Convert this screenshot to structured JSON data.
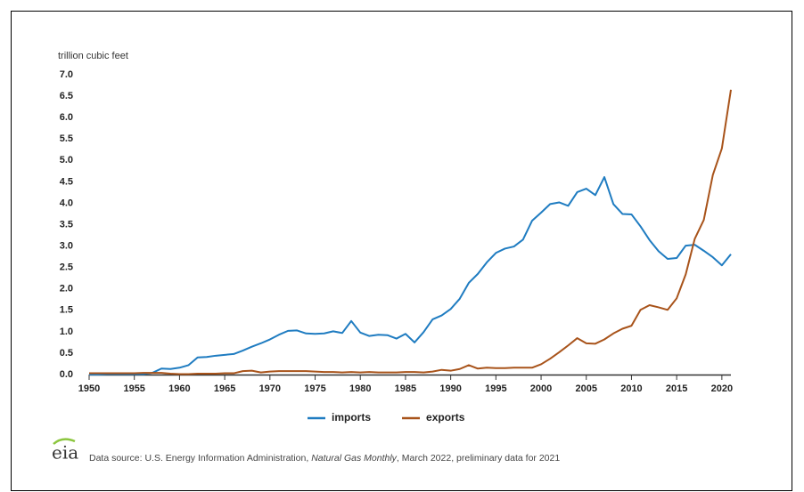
{
  "chart_data": {
    "type": "line",
    "y_axis_label": "trillion cubic feet",
    "x": [
      1950,
      1951,
      1952,
      1953,
      1954,
      1955,
      1956,
      1957,
      1958,
      1959,
      1960,
      1961,
      1962,
      1963,
      1964,
      1965,
      1966,
      1967,
      1968,
      1969,
      1970,
      1971,
      1972,
      1973,
      1974,
      1975,
      1976,
      1977,
      1978,
      1979,
      1980,
      1981,
      1982,
      1983,
      1984,
      1985,
      1986,
      1987,
      1988,
      1989,
      1990,
      1991,
      1992,
      1993,
      1994,
      1995,
      1996,
      1997,
      1998,
      1999,
      2000,
      2001,
      2002,
      2003,
      2004,
      2005,
      2006,
      2007,
      2008,
      2009,
      2010,
      2011,
      2012,
      2013,
      2014,
      2015,
      2016,
      2017,
      2018,
      2019,
      2020,
      2021
    ],
    "series": [
      {
        "name": "imports",
        "color": "#1f7cc1",
        "values": [
          0,
          0,
          0.01,
          0.01,
          0.01,
          0.01,
          0.01,
          0.04,
          0.14,
          0.13,
          0.16,
          0.22,
          0.4,
          0.41,
          0.44,
          0.46,
          0.48,
          0.56,
          0.65,
          0.73,
          0.82,
          0.93,
          1.02,
          1.03,
          0.96,
          0.95,
          0.96,
          1.01,
          0.97,
          1.25,
          0.98,
          0.9,
          0.93,
          0.92,
          0.84,
          0.95,
          0.75,
          0.99,
          1.29,
          1.38,
          1.53,
          1.77,
          2.14,
          2.35,
          2.62,
          2.84,
          2.94,
          2.99,
          3.15,
          3.59,
          3.78,
          3.98,
          4.02,
          3.94,
          4.26,
          4.34,
          4.19,
          4.61,
          3.98,
          3.75,
          3.74,
          3.46,
          3.14,
          2.88,
          2.7,
          2.72,
          3.01,
          3.03,
          2.89,
          2.74,
          2.55,
          2.81
        ]
      },
      {
        "name": "exports",
        "color": "#a8531a",
        "values": [
          0.03,
          0.03,
          0.03,
          0.03,
          0.03,
          0.03,
          0.04,
          0.04,
          0.04,
          0.02,
          0.01,
          0.01,
          0.02,
          0.02,
          0.02,
          0.03,
          0.03,
          0.08,
          0.09,
          0.05,
          0.07,
          0.08,
          0.08,
          0.08,
          0.08,
          0.07,
          0.06,
          0.06,
          0.05,
          0.06,
          0.05,
          0.06,
          0.05,
          0.05,
          0.05,
          0.06,
          0.06,
          0.05,
          0.07,
          0.11,
          0.09,
          0.13,
          0.22,
          0.14,
          0.16,
          0.15,
          0.15,
          0.16,
          0.16,
          0.16,
          0.24,
          0.37,
          0.52,
          0.68,
          0.85,
          0.73,
          0.72,
          0.82,
          0.96,
          1.07,
          1.14,
          1.51,
          1.62,
          1.57,
          1.51,
          1.78,
          2.34,
          3.17,
          3.61,
          4.66,
          5.28,
          6.65
        ]
      }
    ],
    "xlim": [
      1950,
      2021
    ],
    "xticks": [
      1950,
      1955,
      1960,
      1965,
      1970,
      1975,
      1980,
      1985,
      1990,
      1995,
      2000,
      2005,
      2010,
      2015,
      2020
    ],
    "ylim": [
      0,
      7
    ],
    "yticks": [
      {
        "value": 0,
        "label": "0.0"
      },
      {
        "value": 0.5,
        "label": "0.5"
      },
      {
        "value": 1,
        "label": "1.0"
      },
      {
        "value": 1.5,
        "label": "1.5"
      },
      {
        "value": 2,
        "label": "2.0"
      },
      {
        "value": 2.5,
        "label": "2.5"
      },
      {
        "value": 3,
        "label": "3.0"
      },
      {
        "value": 3.5,
        "label": "3.5"
      },
      {
        "value": 4,
        "label": "4.0"
      },
      {
        "value": 4.5,
        "label": "4.5"
      },
      {
        "value": 5,
        "label": "5.0"
      },
      {
        "value": 5.5,
        "label": "5.5"
      },
      {
        "value": 6,
        "label": "6.0"
      },
      {
        "value": 6.5,
        "label": "6.5"
      },
      {
        "value": 7,
        "label": "7.0"
      }
    ],
    "grid": false,
    "legend": "bottom",
    "logo": "eia",
    "source_prefix": "Data source: U.S. Energy Information Administration, ",
    "source_italic": "Natural Gas Monthly",
    "source_suffix": ", March 2022, preliminary data for 2021"
  }
}
